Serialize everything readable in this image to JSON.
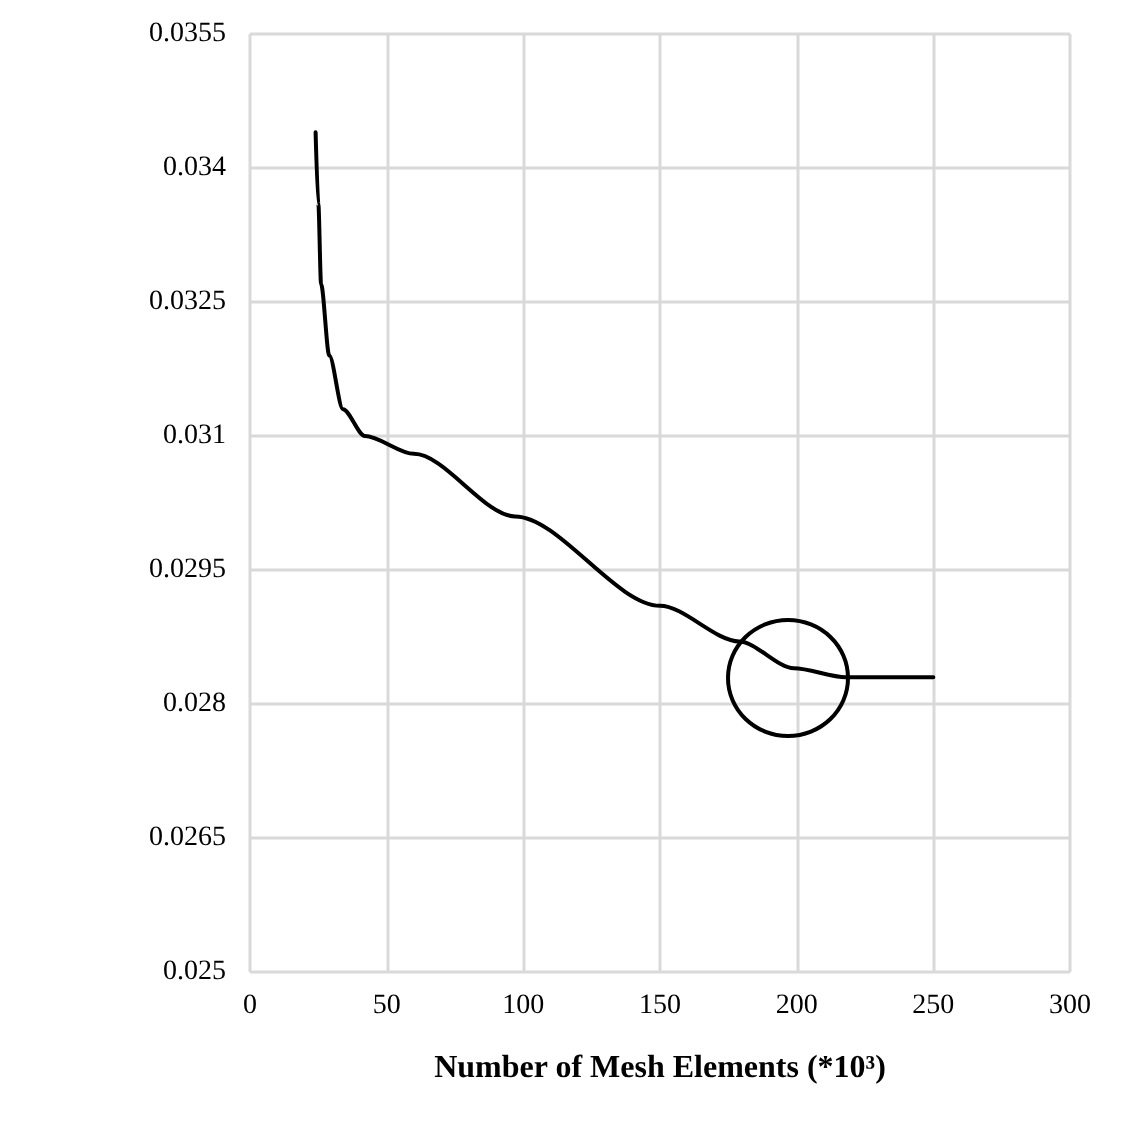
{
  "chart_data": {
    "type": "line",
    "xlabel": "Number of Mesh Elements (*10³)",
    "x": [
      24,
      25,
      26,
      29,
      34,
      42,
      60,
      97,
      150,
      179,
      199,
      218,
      230,
      250
    ],
    "series": [
      {
        "color": "#000000",
        "values": [
          0.0344,
          0.0336,
          0.0327,
          0.0319,
          0.0313,
          0.031,
          0.0308,
          0.0301,
          0.0291,
          0.0287,
          0.0284,
          0.0283,
          0.0283,
          0.0283
        ]
      }
    ],
    "xlim": [
      0,
      300
    ],
    "xticks": [
      0,
      50,
      100,
      150,
      200,
      250,
      300
    ],
    "ylim": [
      0.025,
      0.0355
    ],
    "yticks": [
      0.025,
      0.0265,
      0.028,
      0.0295,
      0.031,
      0.0325,
      0.034,
      0.0355
    ],
    "grid": true,
    "marker": "none",
    "line_style": "solid"
  }
}
